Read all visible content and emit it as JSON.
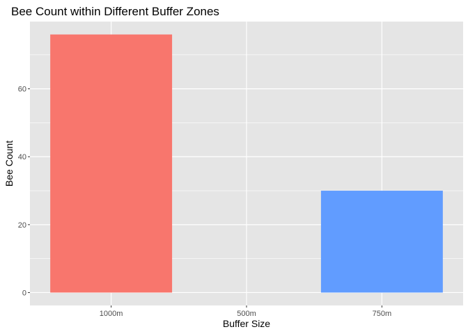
{
  "chart_data": {
    "type": "bar",
    "title": "Bee Count within Different Buffer Zones",
    "xlabel": "Buffer Size",
    "ylabel": "Bee Count",
    "categories": [
      "1000m",
      "500m",
      "750m"
    ],
    "values": [
      76,
      0,
      30
    ],
    "colors": [
      "#F8766D",
      "#00BA38",
      "#619CFF"
    ],
    "ylim": [
      -3.8,
      79.8
    ],
    "yticks": [
      0,
      20,
      40,
      60
    ],
    "ytick_labels": [
      "0",
      "20",
      "40",
      "60"
    ],
    "grid": true,
    "panel_background": "#E5E5E5",
    "gridline_color": "#FFFFFF",
    "legend": "none"
  }
}
